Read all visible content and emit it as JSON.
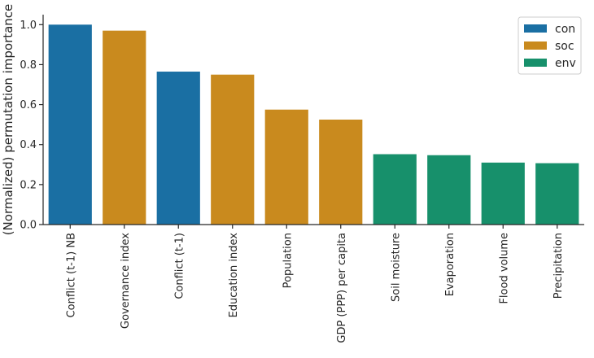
{
  "chart_data": {
    "type": "bar",
    "title": "",
    "xlabel": "",
    "ylabel": "(Normalized) permutation importance",
    "ylim": [
      0,
      1.05
    ],
    "yticks": [
      0.0,
      0.2,
      0.4,
      0.6,
      0.8,
      1.0
    ],
    "ytick_labels": [
      "0.0",
      "0.2",
      "0.4",
      "0.6",
      "0.8",
      "1.0"
    ],
    "grid": false,
    "legend_position": "top-right",
    "legend": [
      {
        "name": "con",
        "color": "#1a6fa3"
      },
      {
        "name": "soc",
        "color": "#c98a1e"
      },
      {
        "name": "env",
        "color": "#17906b"
      }
    ],
    "categories": [
      "Conflict (t-1) NB",
      "Governance index",
      "Conflict (t-1)",
      "Education index",
      "Population",
      "GDP (PPP) per capita",
      "Soil moisture",
      "Evaporation",
      "Flood volume",
      "Precipitation"
    ],
    "values": [
      1.0,
      0.97,
      0.765,
      0.75,
      0.575,
      0.525,
      0.352,
      0.347,
      0.31,
      0.307
    ],
    "groups": [
      "con",
      "soc",
      "con",
      "soc",
      "soc",
      "soc",
      "env",
      "env",
      "env",
      "env"
    ]
  }
}
